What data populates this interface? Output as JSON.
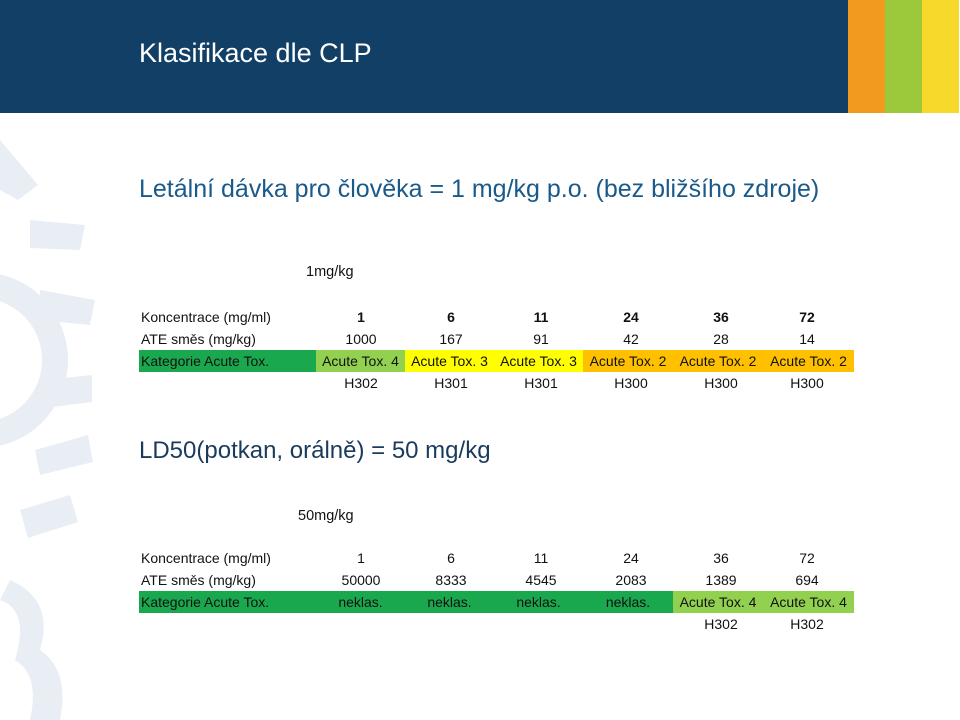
{
  "header": {
    "title": "Klasifikace dle CLP"
  },
  "section1": {
    "heading": "Letální dávka pro člověka = 1 mg/kg p.o. (bez bližšího zdroje)",
    "unit_label": "1mg/kg",
    "table": {
      "concentration": {
        "label": "Koncentrace (mg/ml)",
        "values": [
          "1",
          "6",
          "11",
          "24",
          "36",
          "72"
        ]
      },
      "ate": {
        "label": "ATE směs (mg/kg)",
        "values": [
          "1000",
          "167",
          "91",
          "42",
          "28",
          "14"
        ]
      },
      "category": {
        "label": "Kategorie Acute Tox.",
        "values": [
          "Acute Tox. 4",
          "Acute Tox. 3",
          "Acute Tox. 3",
          "Acute Tox. 2",
          "Acute Tox. 2",
          "Acute Tox. 2"
        ]
      },
      "hazard": {
        "values": [
          "H302",
          "H301",
          "H301",
          "H300",
          "H300",
          "H300"
        ]
      }
    }
  },
  "section2": {
    "heading": "LD50(potkan, orálně) = 50 mg/kg",
    "unit_label": "50mg/kg",
    "table": {
      "concentration": {
        "label": "Koncentrace (mg/ml)",
        "values": [
          "1",
          "6",
          "11",
          "24",
          "36",
          "72"
        ]
      },
      "ate": {
        "label": "ATE směs (mg/kg)",
        "values": [
          "50000",
          "8333",
          "4545",
          "2083",
          "1389",
          "694"
        ]
      },
      "category": {
        "label": "Kategorie Acute Tox.",
        "values": [
          "neklas.",
          "neklas.",
          "neklas.",
          "neklas.",
          "Acute Tox. 4",
          "Acute Tox. 4"
        ]
      },
      "hazard": {
        "values": [
          "",
          "",
          "",
          "",
          "H302",
          "H302"
        ]
      }
    }
  },
  "colors": {
    "header_bg": "#123f66",
    "stripe_orange": "#f29a1e",
    "stripe_lime": "#9cc93b",
    "stripe_yellow": "#f6d92a",
    "category_green": "#1aa84f",
    "category_lime": "#92d050",
    "category_yellow": "#ffff00",
    "category_orange": "#ffc000"
  }
}
